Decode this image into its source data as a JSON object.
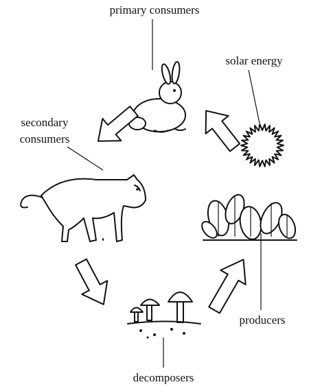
{
  "nodes": [
    {
      "label": "primary consumers"
    },
    {
      "label": "solar energy"
    },
    {
      "label_lines": [
        "secondary",
        "consumers"
      ]
    },
    {
      "label": "producers"
    },
    {
      "label": "decomposers"
    }
  ]
}
